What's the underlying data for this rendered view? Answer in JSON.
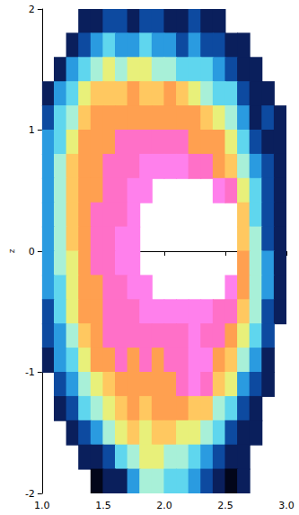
{
  "chart_data": {
    "type": "heatmap",
    "ylabel": "z",
    "x": [
      1.05,
      1.15,
      1.25,
      1.35,
      1.45,
      1.55,
      1.65,
      1.75,
      1.85,
      1.95,
      2.05,
      2.15,
      2.25,
      2.35,
      2.45,
      2.55,
      2.65,
      2.75,
      2.85,
      2.95
    ],
    "y": [
      1.9,
      1.7,
      1.5,
      1.3,
      1.1,
      0.9,
      0.7,
      0.5,
      0.3,
      0.1,
      -0.1,
      -0.3,
      -0.5,
      -0.7,
      -0.9,
      -1.1,
      -1.3,
      -1.5,
      -1.7,
      -1.9
    ],
    "cells": [
      [
        null,
        null,
        null,
        1,
        1,
        2,
        2,
        1,
        2,
        2,
        1,
        1,
        2,
        1,
        1,
        null,
        null,
        null,
        null,
        null
      ],
      [
        null,
        null,
        1,
        2,
        3,
        4,
        3,
        3,
        4,
        3,
        3,
        2,
        3,
        2,
        2,
        1,
        1,
        null,
        null,
        null
      ],
      [
        null,
        1,
        3,
        4,
        5,
        6,
        5,
        6,
        6,
        5,
        5,
        4,
        4,
        4,
        3,
        2,
        1,
        1,
        null,
        null
      ],
      [
        1,
        3,
        4,
        6,
        7,
        7,
        7,
        8,
        7,
        7,
        8,
        7,
        6,
        5,
        4,
        4,
        2,
        1,
        1,
        null
      ],
      [
        2,
        4,
        5,
        7,
        8,
        8,
        8,
        8,
        8,
        8,
        8,
        8,
        8,
        7,
        6,
        5,
        3,
        1,
        2,
        1
      ],
      [
        3,
        4,
        6,
        8,
        8,
        8,
        9,
        9,
        9,
        9,
        9,
        9,
        8,
        8,
        8,
        6,
        4,
        2,
        1,
        1
      ],
      [
        3,
        5,
        7,
        8,
        8,
        9,
        9,
        9,
        10,
        10,
        10,
        10,
        9,
        9,
        8,
        7,
        5,
        3,
        2,
        1
      ],
      [
        3,
        5,
        7,
        8,
        8,
        9,
        9,
        10,
        10,
        null,
        null,
        null,
        null,
        null,
        10,
        9,
        6,
        4,
        2,
        1
      ],
      [
        3,
        5,
        7,
        8,
        9,
        9,
        9,
        10,
        null,
        null,
        null,
        null,
        null,
        null,
        null,
        null,
        7,
        4,
        2,
        1
      ],
      [
        3,
        5,
        7,
        8,
        9,
        9,
        10,
        10,
        null,
        null,
        null,
        null,
        null,
        null,
        null,
        null,
        7,
        5,
        2,
        1
      ],
      [
        3,
        5,
        6,
        8,
        9,
        9,
        10,
        10,
        null,
        null,
        null,
        null,
        null,
        null,
        null,
        null,
        8,
        5,
        3,
        1
      ],
      [
        3,
        4,
        6,
        8,
        8,
        9,
        9,
        10,
        10,
        null,
        null,
        null,
        null,
        null,
        null,
        10,
        8,
        5,
        3,
        1
      ],
      [
        2,
        4,
        6,
        8,
        8,
        9,
        9,
        9,
        10,
        10,
        10,
        10,
        10,
        10,
        9,
        9,
        7,
        5,
        2,
        1
      ],
      [
        2,
        3,
        5,
        7,
        8,
        9,
        9,
        9,
        9,
        9,
        9,
        9,
        10,
        9,
        9,
        8,
        6,
        4,
        2,
        null
      ],
      [
        1,
        3,
        4,
        6,
        8,
        8,
        9,
        8,
        9,
        8,
        9,
        9,
        10,
        10,
        8,
        7,
        5,
        3,
        1,
        null
      ],
      [
        null,
        2,
        3,
        5,
        6,
        7,
        8,
        8,
        8,
        8,
        8,
        9,
        10,
        9,
        7,
        6,
        3,
        2,
        1,
        null
      ],
      [
        null,
        1,
        2,
        4,
        5,
        6,
        7,
        8,
        7,
        8,
        8,
        8,
        7,
        7,
        5,
        4,
        2,
        1,
        null,
        null
      ],
      [
        null,
        null,
        1,
        2,
        3,
        5,
        6,
        7,
        6,
        7,
        7,
        6,
        6,
        5,
        4,
        2,
        1,
        1,
        null,
        null
      ],
      [
        null,
        null,
        null,
        1,
        1,
        2,
        4,
        5,
        6,
        6,
        5,
        5,
        4,
        3,
        2,
        1,
        1,
        null,
        null,
        null
      ],
      [
        null,
        null,
        null,
        null,
        0,
        1,
        1,
        3,
        5,
        5,
        4,
        4,
        3,
        2,
        1,
        0,
        1,
        null,
        null,
        null
      ]
    ],
    "color_range": [
      0,
      10
    ],
    "xlim": [
      1,
      3
    ],
    "xticks": [
      {
        "value": 1,
        "label": "1.0"
      },
      {
        "value": 1.5,
        "label": "1.5"
      },
      {
        "value": 2,
        "label": "2.0"
      },
      {
        "value": 2.5,
        "label": "2.5"
      },
      {
        "value": 3,
        "label": "3.0"
      }
    ],
    "ylim": [
      -2,
      2
    ],
    "yticks": [
      -2,
      -1,
      0,
      1,
      2
    ],
    "grid": false
  }
}
